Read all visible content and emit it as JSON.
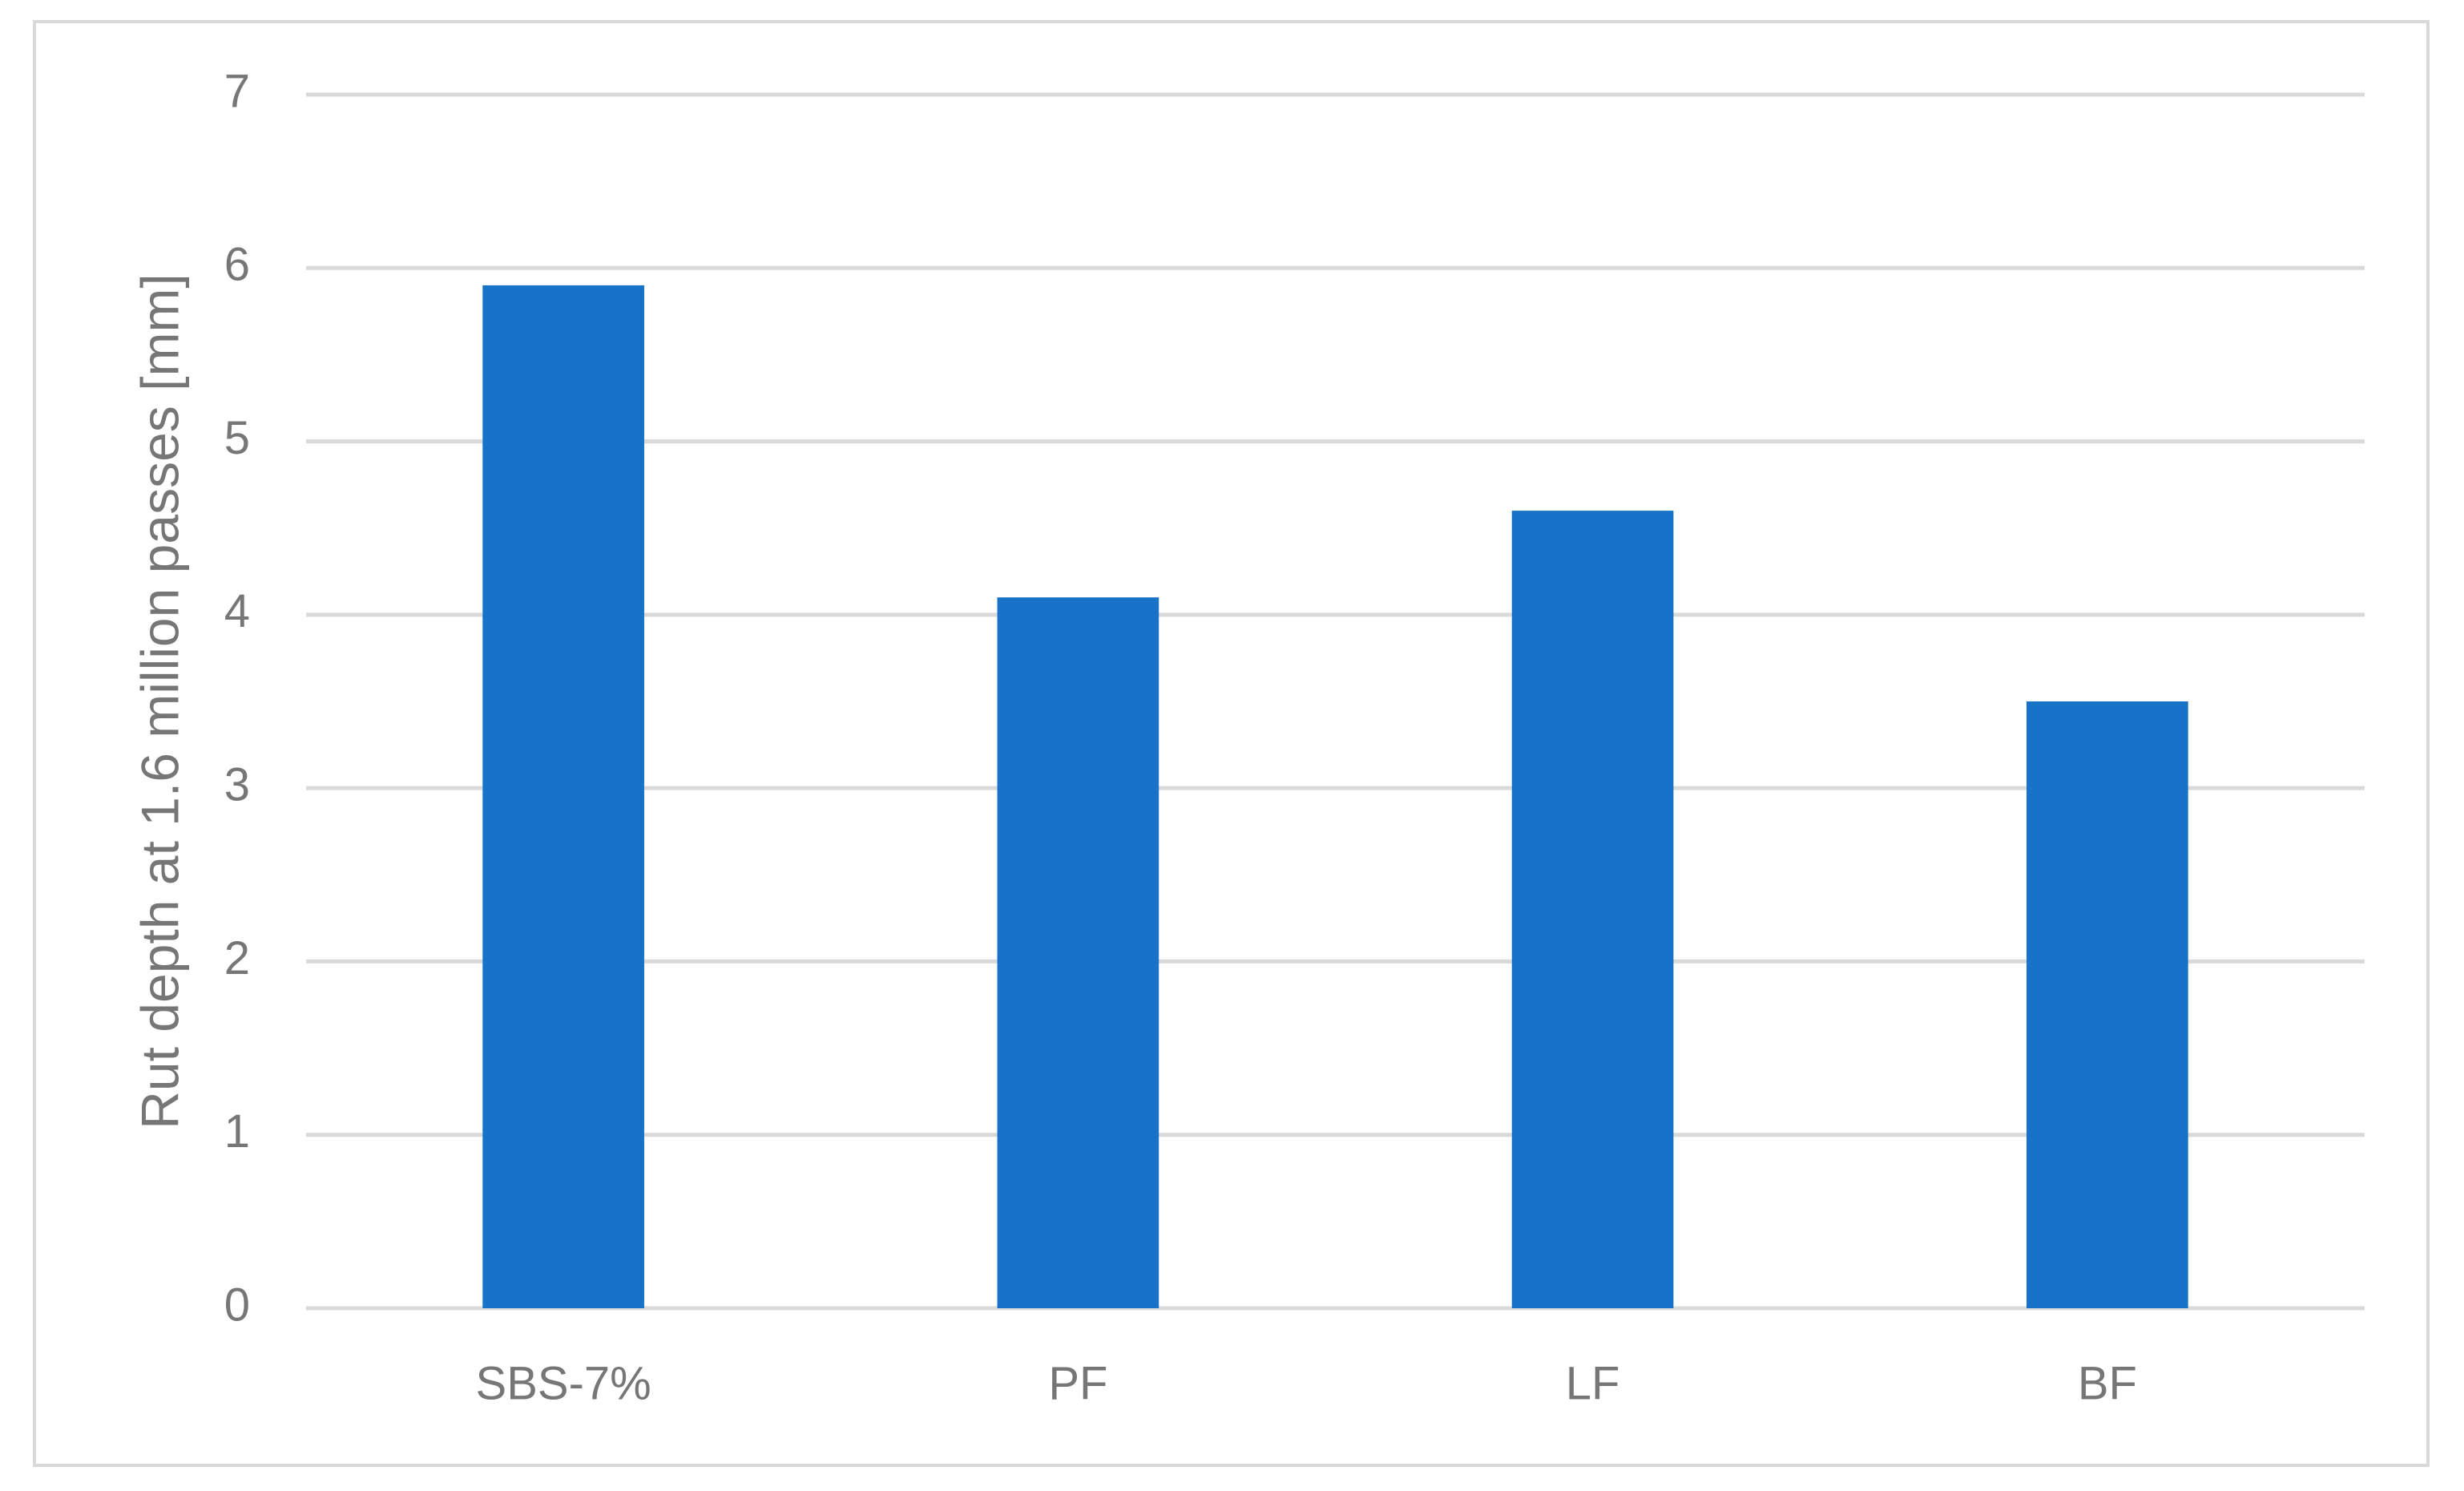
{
  "chart_data": {
    "type": "bar",
    "y_label": "Rut depth at 1.6 million passes [mm]",
    "categories": [
      "SBS-7%",
      "PF",
      "LF",
      "BF"
    ],
    "values": [
      5.9,
      4.1,
      4.6,
      3.5
    ],
    "color": "#1872c8",
    "ylim": [
      0,
      7
    ],
    "yticks": [
      0,
      1,
      2,
      3,
      4,
      5,
      6,
      7
    ],
    "grid": true
  }
}
